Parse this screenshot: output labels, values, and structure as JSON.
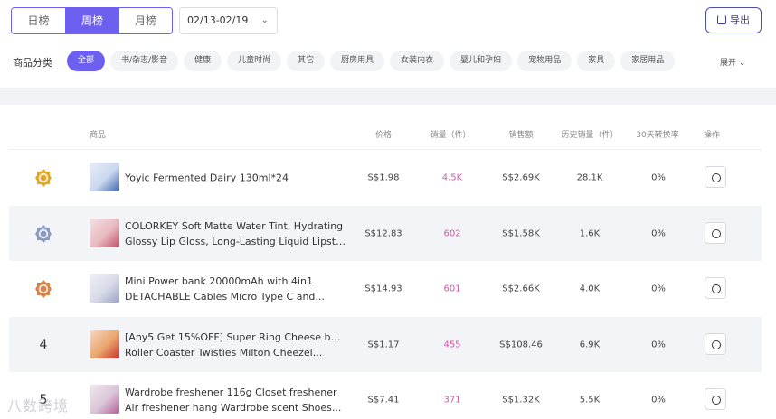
{
  "tabs": [
    {
      "label": "日榜",
      "active": false
    },
    {
      "label": "周榜",
      "active": true
    },
    {
      "label": "月榜",
      "active": false
    }
  ],
  "date_range": "02/13-02/19",
  "export_label": "导出",
  "category_label": "商品分类",
  "categories": [
    "全部",
    "书/杂志/影音",
    "健康",
    "儿童时尚",
    "其它",
    "厨房用具",
    "女装内衣",
    "婴儿和孕妇",
    "宠物用品",
    "家具",
    "家居用品"
  ],
  "expand_label": "展开",
  "columns": {
    "product": "商品",
    "price": "价格",
    "sales": "销量（件）",
    "revenue": "销售额",
    "history": "历史销量（件）",
    "conversion": "30天转换率",
    "action": "操作"
  },
  "rows": [
    {
      "rank": "1",
      "medal": "gold",
      "name_l1": "Yoyic Fermented Dairy 130ml*24",
      "name_l2": "",
      "price": "S$1.98",
      "sales": "4.5K",
      "revenue": "S$2.69K",
      "history": "28.1K",
      "conversion": "0%"
    },
    {
      "rank": "2",
      "medal": "silver",
      "name_l1": "COLORKEY Soft Matte Water Tint, Hydrating",
      "name_l2": "Glossy Lip Gloss, Long-Lasting Liquid Lipsti...",
      "price": "S$12.83",
      "sales": "602",
      "revenue": "S$1.58K",
      "history": "1.6K",
      "conversion": "0%"
    },
    {
      "rank": "3",
      "medal": "bronze",
      "name_l1": "Mini Power bank 20000mAh with 4in1",
      "name_l2": "DETACHABLE Cables Micro Type C and...",
      "price": "S$14.93",
      "sales": "601",
      "revenue": "S$2.66K",
      "history": "4.0K",
      "conversion": "0%"
    },
    {
      "rank": "4",
      "medal": "",
      "name_l1": "[Any5 Get 15%OFF] Super Ring Cheese balls",
      "name_l2": "Roller Coaster Twisties Milton Cheezel...",
      "price": "S$1.17",
      "sales": "455",
      "revenue": "S$108.46",
      "history": "6.9K",
      "conversion": "0%"
    },
    {
      "rank": "5",
      "medal": "",
      "name_l1": "Wardrobe freshener 116g Closet freshener",
      "name_l2": "Air freshener hang Wardrobe scent Shoes...",
      "price": "S$7.41",
      "sales": "371",
      "revenue": "S$1.32K",
      "history": "5.5K",
      "conversion": "0%"
    }
  ],
  "watermark": "八数跨境",
  "colors": {
    "accent": "#6d5ff0",
    "sales": "#d05aa4",
    "gold": "#e0a92a",
    "silver": "#8a9bc3",
    "bronze": "#d9824a"
  }
}
